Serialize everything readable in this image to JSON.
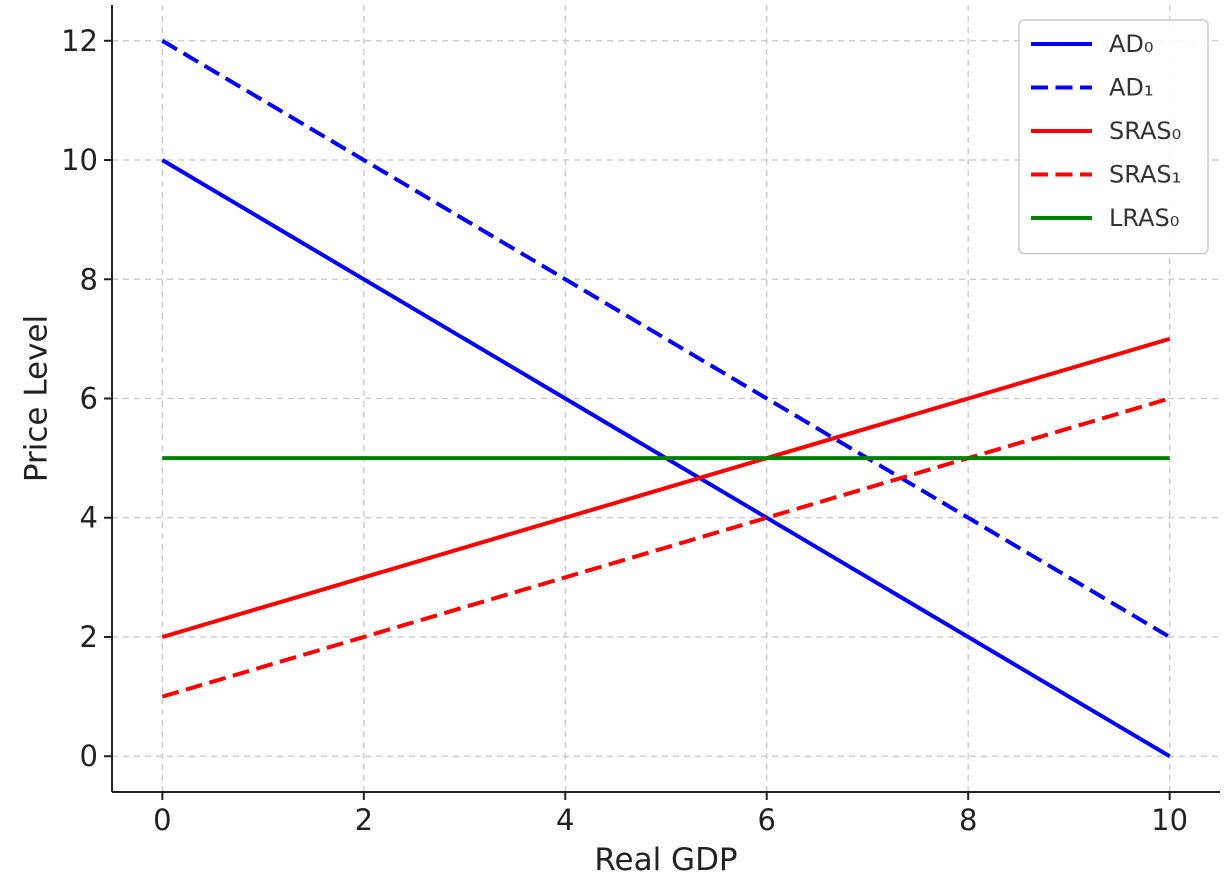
{
  "chart_data": {
    "type": "line",
    "title": "",
    "xlabel": "Real GDP",
    "ylabel": "Price Level",
    "xlim": [
      -0.5,
      10.5
    ],
    "ylim": [
      -0.6,
      12.6
    ],
    "x_ticks": [
      0,
      2,
      4,
      6,
      8,
      10
    ],
    "y_ticks": [
      0,
      2,
      4,
      6,
      8,
      10,
      12
    ],
    "grid": true,
    "legend_position": "top-right",
    "series": [
      {
        "name": "AD₀",
        "color": "#0000ff",
        "dash": "solid",
        "x": [
          0,
          10
        ],
        "y": [
          10,
          0
        ]
      },
      {
        "name": "AD₁",
        "color": "#0000ff",
        "dash": "dashed",
        "x": [
          0,
          10
        ],
        "y": [
          12,
          2
        ]
      },
      {
        "name": "SRAS₀",
        "color": "#ff0000",
        "dash": "solid",
        "x": [
          0,
          10
        ],
        "y": [
          2,
          7
        ]
      },
      {
        "name": "SRAS₁",
        "color": "#ff0000",
        "dash": "dashed",
        "x": [
          0,
          10
        ],
        "y": [
          1,
          6
        ]
      },
      {
        "name": "LRAS₀",
        "color": "#008000",
        "dash": "solid",
        "x": [
          0,
          10
        ],
        "y": [
          5,
          5
        ]
      }
    ]
  }
}
